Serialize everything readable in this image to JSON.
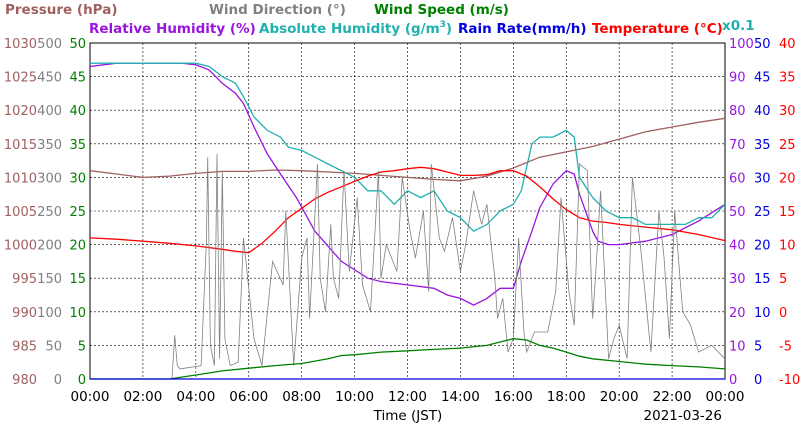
{
  "chart_data": {
    "type": "line",
    "date_label": "2021-03-26",
    "xlabel": "Time (JST)",
    "x_ticks": [
      "00:00",
      "02:00",
      "04:00",
      "06:00",
      "08:00",
      "10:00",
      "12:00",
      "14:00",
      "16:00",
      "18:00",
      "20:00",
      "22:00",
      "00:00"
    ],
    "axes": {
      "pressure": {
        "label": "Pressure (hPa)",
        "color": "#a06060",
        "ticks": [
          "1030",
          "1025",
          "1020",
          "1015",
          "1010",
          "1005",
          "1000",
          "995",
          "990",
          "985",
          "980"
        ],
        "ylim": [
          980,
          1030
        ]
      },
      "wind_dir": {
        "label": "Wind Direction (°)",
        "color": "#808080",
        "ticks": [
          "500",
          "450",
          "400",
          "350",
          "300",
          "250",
          "200",
          "150",
          "100",
          "50",
          "0"
        ],
        "ylim": [
          0,
          500
        ]
      },
      "wind_speed": {
        "label": "Wind Speed (m/s)",
        "color": "#008000",
        "ticks": [
          "50",
          "45",
          "40",
          "35",
          "30",
          "25",
          "20",
          "15",
          "10",
          "5",
          "0"
        ],
        "ylim": [
          0,
          50
        ]
      },
      "humidity": {
        "label": "Relative Humidity (%)",
        "color": "#9a14e0",
        "ticks": [
          "100",
          "90",
          "80",
          "70",
          "60",
          "50",
          "40",
          "30",
          "20",
          "10",
          "0"
        ],
        "ylim": [
          0,
          100
        ]
      },
      "abs_hum": {
        "label": "Absolute Humidity (g/m",
        "label_sup": "3",
        "label_end": ")",
        "color": "#20b0b0",
        "multiplier": "x0.1",
        "ticks": [
          "50",
          "45",
          "40",
          "35",
          "30",
          "25",
          "20",
          "15",
          "10",
          "5",
          "0"
        ],
        "ylim": [
          0,
          50
        ]
      },
      "rain": {
        "label": "Rain Rate(mm/h)",
        "color": "#0000e0",
        "ticks": [
          "50",
          "45",
          "40",
          "35",
          "30",
          "25",
          "20",
          "15",
          "10",
          "5",
          "0"
        ],
        "ylim": [
          0,
          50
        ]
      },
      "temp": {
        "label": "Temperature (°C)",
        "color": "#ff0000",
        "ticks": [
          "40",
          "35",
          "30",
          "25",
          "20",
          "15",
          "10",
          "5",
          "0",
          "-5",
          "-10"
        ],
        "ylim": [
          -10,
          40
        ]
      }
    },
    "series": [
      {
        "name": "Pressure (hPa)",
        "axis": "pressure",
        "color": "#a06060",
        "x": [
          0,
          1,
          2,
          3,
          4,
          5,
          6,
          7,
          8,
          9,
          10,
          11,
          12,
          13,
          14,
          15,
          16,
          17,
          18,
          19,
          20,
          21,
          22,
          23,
          24
        ],
        "y": [
          1011.0,
          1010.5,
          1010.0,
          1010.2,
          1010.6,
          1010.9,
          1010.9,
          1011.1,
          1011.0,
          1010.8,
          1010.6,
          1010.3,
          1010.0,
          1009.7,
          1009.5,
          1010.2,
          1011.4,
          1013.0,
          1013.8,
          1014.6,
          1015.7,
          1016.8,
          1017.5,
          1018.2,
          1018.8
        ]
      },
      {
        "name": "Relative Humidity (%)",
        "axis": "humidity",
        "color": "#9a14e0",
        "x": [
          0,
          1,
          2,
          3,
          3.5,
          4,
          4.5,
          5,
          5.5,
          5.8,
          6.2,
          6.7,
          7.2,
          7.8,
          8.5,
          9.5,
          10.5,
          11,
          12,
          13,
          13.5,
          14,
          14.5,
          15,
          15.5,
          16,
          16.3,
          16.7,
          17,
          17.5,
          18,
          18.3,
          18.5,
          19,
          19.2,
          19.6,
          20,
          21,
          22,
          23,
          24
        ],
        "y": [
          93,
          94,
          94,
          94,
          94,
          93.5,
          92,
          88,
          85,
          82,
          75,
          67,
          61,
          54,
          44,
          35,
          30,
          29,
          28,
          27,
          25,
          24,
          22,
          24,
          27,
          27,
          35,
          44,
          51,
          58,
          62,
          61,
          55,
          44,
          41,
          40,
          40,
          41,
          43,
          47,
          52
        ]
      },
      {
        "name": "Absolute Humidity (g/m3) x0.1",
        "axis": "abs_hum",
        "color": "#20b0b0",
        "x": [
          0,
          1,
          2,
          3,
          3.5,
          4,
          4.5,
          5,
          5.5,
          5.8,
          6.2,
          6.7,
          7.2,
          7.5,
          8,
          8.5,
          9,
          9.5,
          10,
          10.5,
          11,
          11.5,
          12,
          12.5,
          13,
          13.5,
          14,
          14.5,
          15,
          15.5,
          16,
          16.3,
          16.7,
          17,
          17.5,
          18,
          18.3,
          18.5,
          19,
          19.5,
          20,
          20.5,
          21,
          21.5,
          22,
          22.5,
          23,
          23.5,
          24
        ],
        "y": [
          47,
          47,
          47,
          47,
          47,
          47,
          46.5,
          45,
          44,
          42,
          39,
          37,
          36,
          34.5,
          34,
          33,
          32,
          31,
          30,
          28,
          28,
          26,
          28,
          27,
          28,
          25,
          24,
          22,
          23,
          25,
          26,
          28,
          35,
          36,
          36,
          37,
          36,
          30,
          27,
          25,
          24,
          24,
          23,
          23,
          23,
          23,
          24,
          24,
          26
        ]
      },
      {
        "name": "Temperature (°C)",
        "axis": "temp",
        "color": "#ff0000",
        "x": [
          0,
          1,
          2,
          3,
          4,
          5,
          5.5,
          6,
          6.5,
          7,
          7.5,
          8,
          8.5,
          9,
          9.5,
          10,
          10.5,
          11,
          11.5,
          12,
          12.5,
          13,
          13.5,
          14,
          14.5,
          15,
          15.5,
          16,
          16.5,
          17,
          17.5,
          18,
          18.5,
          19,
          19.5,
          20,
          21,
          22,
          23,
          24
        ],
        "y": [
          11,
          10.8,
          10.5,
          10.2,
          9.8,
          9.3,
          9,
          8.8,
          10.2,
          12,
          14,
          15.4,
          16.8,
          17.8,
          18.6,
          19.4,
          20.2,
          20.8,
          21,
          21.3,
          21.5,
          21.3,
          20.8,
          20.3,
          20.3,
          20.4,
          21,
          21,
          20.2,
          18.6,
          16.8,
          15.2,
          14,
          13.5,
          13.3,
          13,
          12.6,
          12.2,
          11.5,
          10.6
        ]
      },
      {
        "name": "Wind Direction (°)",
        "axis": "wind_dir",
        "color": "#808080",
        "x": [
          0,
          3.1,
          3.2,
          3.3,
          3.4,
          4.2,
          4.4,
          4.45,
          4.55,
          4.7,
          4.8,
          4.9,
          5.0,
          5.1,
          5.3,
          5.6,
          5.8,
          6.2,
          6.5,
          6.9,
          7.3,
          7.4,
          7.7,
          8.0,
          8.2,
          8.3,
          8.6,
          8.7,
          8.9,
          9.1,
          9.2,
          9.4,
          9.6,
          9.8,
          10.1,
          10.3,
          10.6,
          10.9,
          11.0,
          11.2,
          11.6,
          11.8,
          12.1,
          12.3,
          12.6,
          12.8,
          12.9,
          13.2,
          13.4,
          13.7,
          14.0,
          14.2,
          14.5,
          14.8,
          15.0,
          15.3,
          15.4,
          15.6,
          15.8,
          16.0,
          16.2,
          16.4,
          16.5,
          16.8,
          17.0,
          17.3,
          17.6,
          17.8,
          18.1,
          18.3,
          18.5,
          18.8,
          19.0,
          19.1,
          19.3,
          19.6,
          19.8,
          20.0,
          20.3,
          20.5,
          20.8,
          21.0,
          21.2,
          21.5,
          21.7,
          21.9,
          22.1,
          22.4,
          22.7,
          23.0,
          23.5,
          24
        ],
        "y": [
          0,
          0,
          65,
          20,
          15,
          20,
          205,
          330,
          50,
          20,
          335,
          30,
          310,
          60,
          20,
          25,
          210,
          60,
          20,
          175,
          140,
          250,
          20,
          180,
          210,
          90,
          320,
          150,
          100,
          230,
          150,
          120,
          310,
          160,
          270,
          140,
          100,
          310,
          150,
          200,
          160,
          300,
          220,
          180,
          250,
          130,
          320,
          210,
          190,
          240,
          160,
          200,
          280,
          230,
          260,
          150,
          90,
          120,
          40,
          60,
          210,
          70,
          40,
          70,
          70,
          70,
          130,
          270,
          130,
          80,
          320,
          310,
          90,
          150,
          280,
          30,
          60,
          80,
          30,
          300,
          200,
          120,
          40,
          250,
          180,
          60,
          250,
          100,
          80,
          40,
          50,
          30
        ]
      },
      {
        "name": "Wind Speed (m/s)",
        "axis": "wind_speed",
        "color": "#008000",
        "x": [
          0,
          3,
          4,
          5,
          6,
          7,
          8,
          9,
          9.5,
          10,
          11,
          12,
          13,
          14,
          15,
          15.5,
          16,
          16.5,
          17,
          17.5,
          18,
          18.5,
          19,
          20,
          21,
          22,
          23,
          24
        ],
        "y": [
          0,
          0,
          0.6,
          1.2,
          1.6,
          2,
          2.3,
          3,
          3.5,
          3.6,
          4,
          4.2,
          4.4,
          4.6,
          5,
          5.5,
          6,
          5.8,
          5,
          4.6,
          4,
          3.4,
          3,
          2.6,
          2.2,
          2,
          1.8,
          1.5
        ]
      },
      {
        "name": "Rain Rate(mm/h)",
        "axis": "rain",
        "color": "#0000e0",
        "x": [
          0,
          24
        ],
        "y": [
          0,
          0
        ]
      }
    ]
  }
}
